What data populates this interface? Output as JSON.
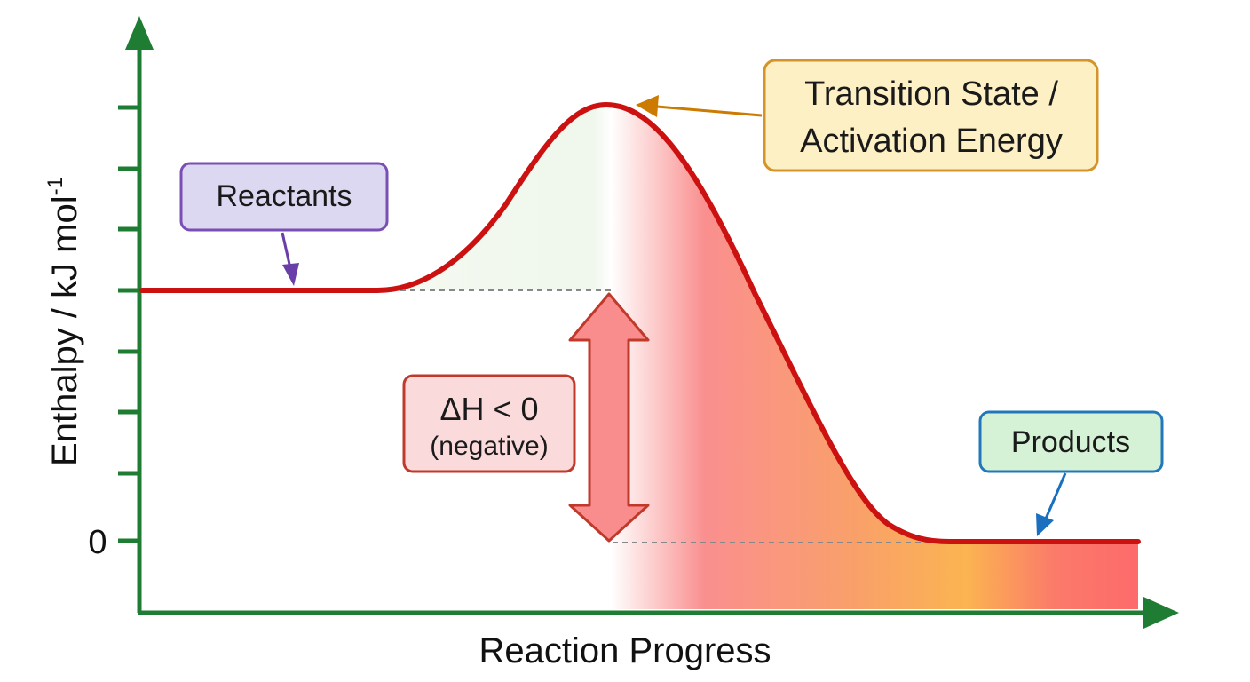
{
  "diagram": {
    "x_axis_label": "Reaction Progress",
    "y_axis_label": "Enthalpy / kJ mol",
    "y_axis_label_superscript": "-1",
    "zero_tick_label": "0",
    "reactants_label": "Reactants",
    "products_label": "Products",
    "transition_state_line1": "Transition State /",
    "transition_state_line2": "Activation Energy",
    "delta_h_line1": "ΔH < 0",
    "delta_h_line2": "(negative)",
    "colors": {
      "axis": "#1e7d32",
      "curve": "#cc1111",
      "reactants_box_fill": "#ddd8f2",
      "reactants_box_stroke": "#7a4fb5",
      "reactants_arrow": "#6a3ea8",
      "products_box_fill": "#d6f2d6",
      "products_box_stroke": "#2277bb",
      "products_arrow": "#1a6fbf",
      "transition_box_fill": "#fdf0c4",
      "transition_box_stroke": "#d4942a",
      "transition_arrow": "#cc7a00",
      "delta_box_fill": "#fadada",
      "delta_box_stroke": "#c0392b",
      "delta_arrow_fill": "#f98d8d",
      "delta_arrow_stroke": "#c0392b"
    },
    "icons": {
      "reactants_pointer": "arrow-down-icon",
      "products_pointer": "arrow-down-left-icon",
      "transition_pointer": "arrow-left-icon",
      "delta_h_indicator": "double-arrow-vertical-icon"
    }
  }
}
